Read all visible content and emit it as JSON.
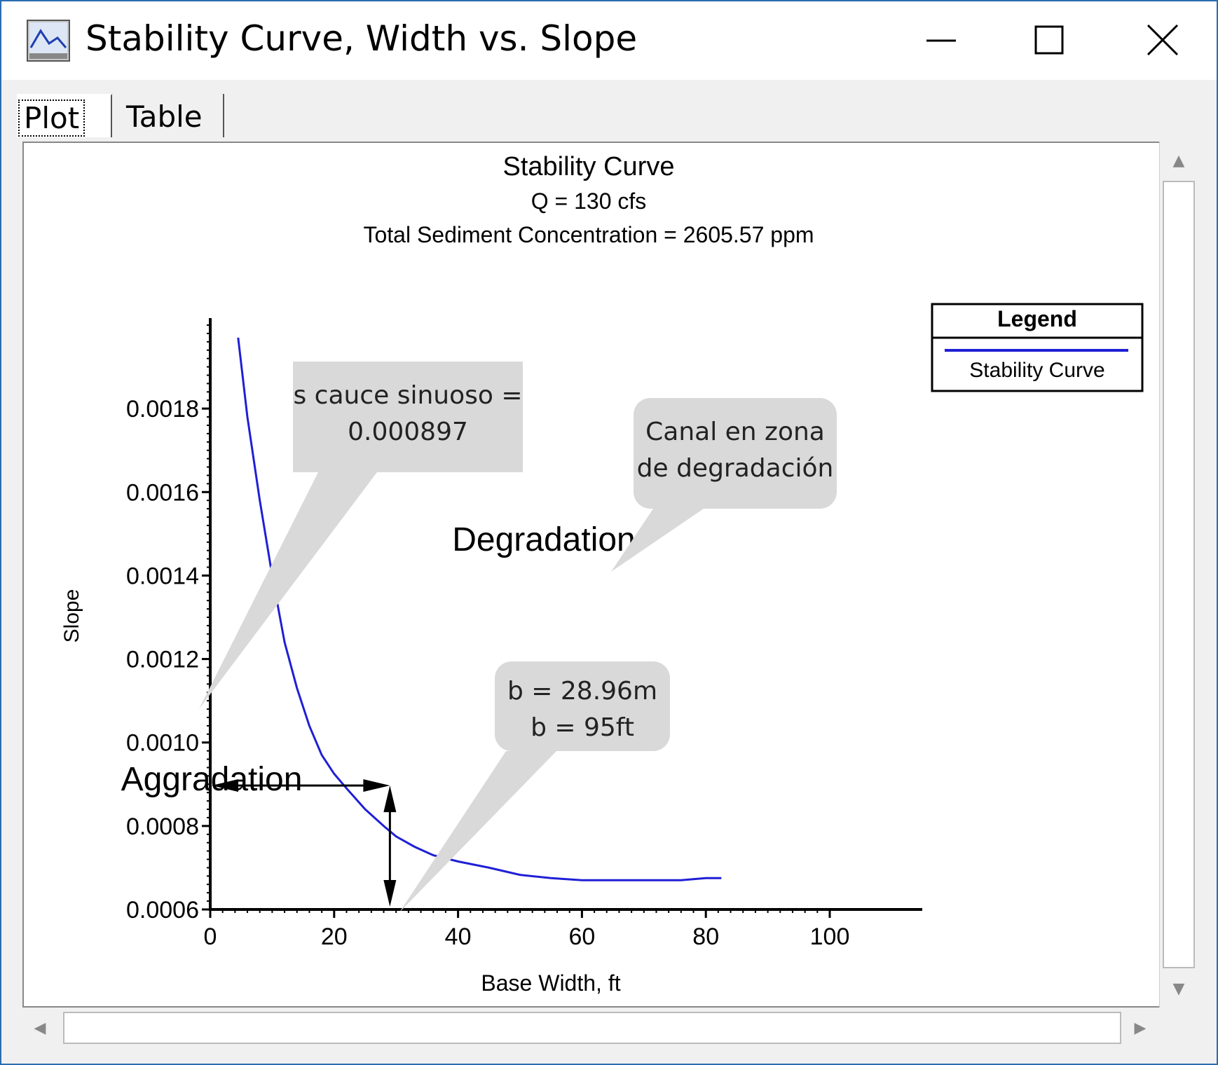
{
  "window": {
    "title": "Stability Curve, Width vs. Slope",
    "controls": [
      "minimize",
      "maximize",
      "close"
    ]
  },
  "tabs": [
    {
      "label": "Plot",
      "selected": true
    },
    {
      "label": "Table",
      "selected": false
    }
  ],
  "chart_data": {
    "type": "line",
    "title": "Stability Curve",
    "subtitle_lines": [
      "Q = 130 cfs",
      "Total Sediment Concentration = 2605.57 ppm"
    ],
    "xlabel": "Base Width, ft",
    "ylabel": "Slope",
    "xlim": [
      0,
      100
    ],
    "ylim": [
      0.0006,
      0.002
    ],
    "x_ticks": [
      "0",
      "20",
      "40",
      "60",
      "80",
      "100"
    ],
    "x_tick_values": [
      0,
      20,
      40,
      60,
      80,
      100
    ],
    "y_ticks": [
      "0.0006",
      "0.0008",
      "0.0010",
      "0.0012",
      "0.0014",
      "0.0016",
      "0.0018"
    ],
    "y_tick_values": [
      0.0006,
      0.0008,
      0.001,
      0.0012,
      0.0014,
      0.0016,
      0.0018
    ],
    "grid": false,
    "legend": {
      "title": "Legend",
      "position": "top-right"
    },
    "series": [
      {
        "name": "Stability Curve",
        "color": "#1f1fd6",
        "x": [
          4.5,
          6,
          8,
          10,
          12,
          14,
          16,
          18,
          20,
          22,
          25,
          28,
          30,
          33,
          36,
          40,
          45,
          50,
          55,
          60,
          65,
          70,
          76,
          80,
          82.5
        ],
        "y": [
          0.00197,
          0.00178,
          0.00158,
          0.0014,
          0.00124,
          0.00113,
          0.00104,
          0.00097,
          0.000925,
          0.00089,
          0.00084,
          0.0008,
          0.000775,
          0.00075,
          0.00073,
          0.000715,
          0.0007,
          0.000683,
          0.000675,
          0.00067,
          0.00067,
          0.00067,
          0.00067,
          0.000675,
          0.000675
        ]
      }
    ],
    "region_labels": [
      "Degradation",
      "Aggradation"
    ],
    "reference_point": {
      "x": 29,
      "y": 0.000897
    }
  },
  "callouts": [
    {
      "lines": [
        "s cauce sinuoso =",
        "0.000897"
      ]
    },
    {
      "lines": [
        "Canal en zona",
        "de degradación"
      ]
    },
    {
      "lines": [
        "b = 28.96m",
        "b = 95ft"
      ]
    }
  ],
  "colors": {
    "window_border": "#2b6cb0",
    "curve": "#1f1fd6",
    "callout_fill": "#d9d9d9"
  }
}
